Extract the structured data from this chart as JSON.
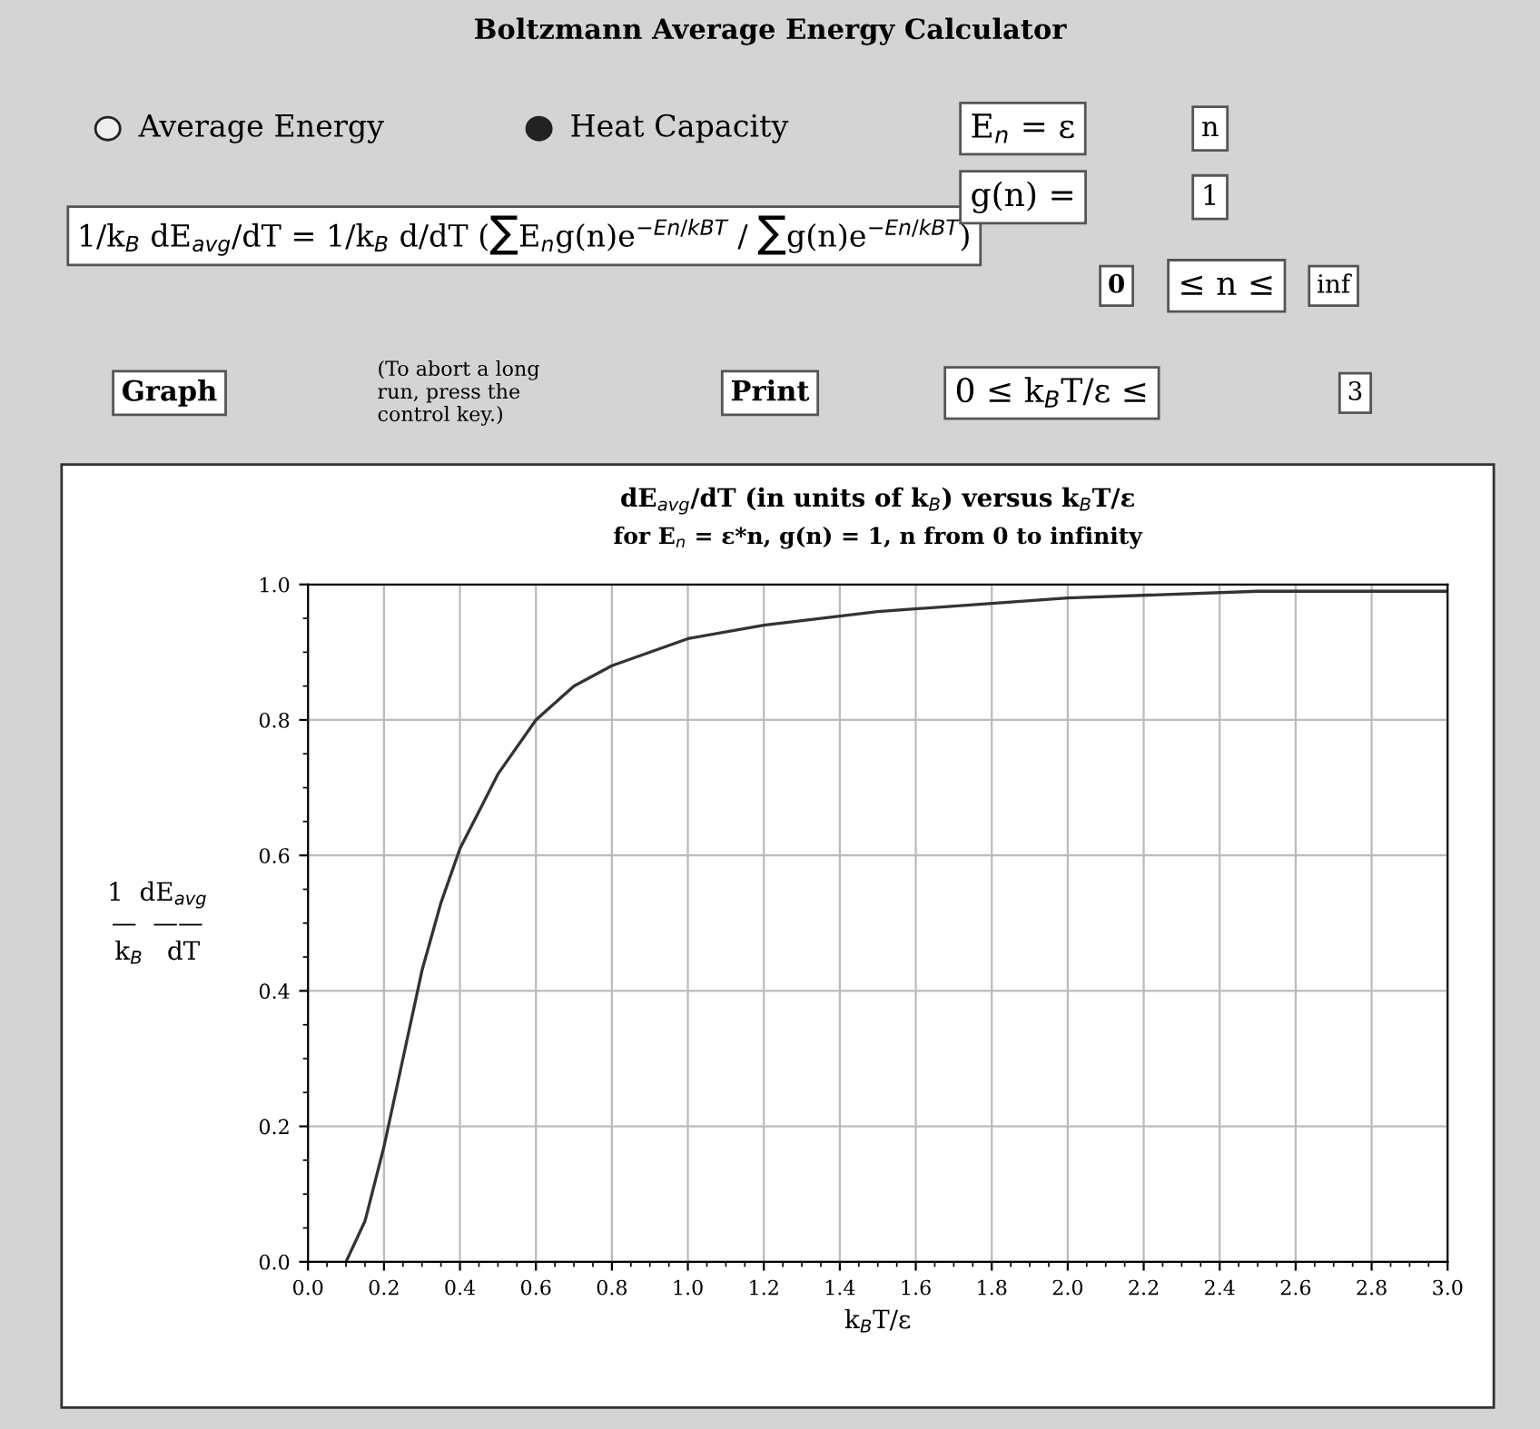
{
  "chart_data": [
    {
      "type": "other",
      "title": "Boltzmann Average Energy Calculator",
      "annotations": [
        "Average Energy",
        "Heat Capacity",
        "1/k$_{B}$ dE$_{avg}$/dT = 1/k$_{B}$ d/dT (∑E$_{n}$g(n)e$^{−En/kBT}$ / ∑g(n)e$^{−En/kBT}$)",
        "E$_{n}$ = ε",
        "n",
        "g(n) =",
        "1",
        "0",
        "≤ n ≤",
        "inf",
        "Graph",
        "(To abort a long\nrun, press the\ncontrol key.)",
        "Print",
        "0 ≤ k$_{B}$T/ε ≤",
        "3"
      ]
    },
    {
      "type": "line",
      "title": "dE$_{avg}$/dT (in units of k$_{B}$) versus k$_{B}$T/ε",
      "subtitle": "for E$_{n}$ = ε*n, g(n) = 1, n from 0 to infinity",
      "xlabel": "k$_{B}$T/ε",
      "ylabel": "1  dE$_{avg}$\n—  ——\nk$_{B}$   dT",
      "series": [
        {
          "color": "#333333",
          "x": [
            0.1,
            0.15,
            0.2,
            0.25,
            0.3,
            0.35,
            0.4,
            0.5,
            0.6,
            0.7,
            0.8,
            1.0,
            1.2,
            1.5,
            2.0,
            2.5,
            3.0
          ],
          "values": [
            0.0,
            0.06,
            0.17,
            0.3,
            0.43,
            0.53,
            0.61,
            0.72,
            0.8,
            0.85,
            0.88,
            0.92,
            0.94,
            0.96,
            0.98,
            0.99,
            0.99
          ]
        }
      ],
      "xlim": [
        0,
        3
      ],
      "ylim": [
        0,
        1
      ],
      "xticks": [
        {
          "value": 0,
          "label": "0.0"
        },
        0.2,
        0.4,
        0.6,
        0.8,
        {
          "value": 1,
          "label": "1.0"
        },
        1.2,
        1.4,
        1.6,
        1.8,
        {
          "value": 2,
          "label": "2.0"
        },
        2.2,
        2.4,
        2.6,
        2.8,
        {
          "value": 3,
          "label": "3.0"
        }
      ],
      "yticks": [
        {
          "value": 0,
          "label": "0.0"
        },
        0.2,
        0.4,
        0.6,
        0.8,
        {
          "value": 1,
          "label": "1.0"
        }
      ],
      "grid": true,
      "legend": false,
      "marker": "none",
      "line_style": "solid"
    }
  ]
}
